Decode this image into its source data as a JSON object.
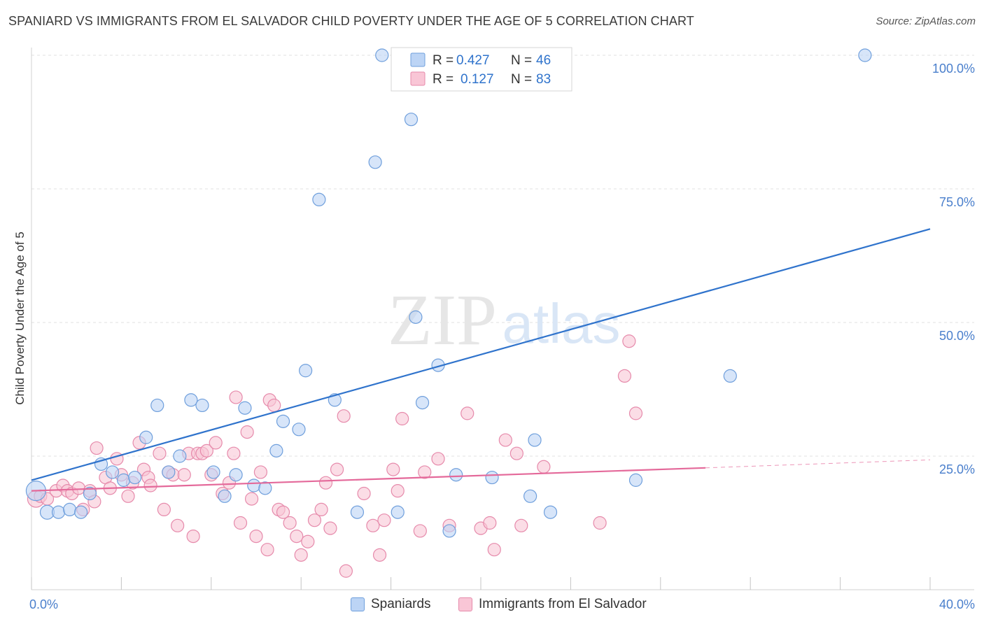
{
  "title": "SPANIARD VS IMMIGRANTS FROM EL SALVADOR CHILD POVERTY UNDER THE AGE OF 5 CORRELATION CHART",
  "source": "Source: ZipAtlas.com",
  "watermark": {
    "zip": "ZIP",
    "atlas": "atlas"
  },
  "colors": {
    "spaniards_fill": "#bcd4f5",
    "spaniards_stroke": "#6f9fdc",
    "spaniards_line": "#2f73cc",
    "salvador_fill": "#f9c6d6",
    "salvador_stroke": "#e68aab",
    "salvador_line": "#e4699a",
    "axis_text": "#4a7fcc",
    "grid": "#e2e2e2"
  },
  "legend": {
    "rows": [
      {
        "r_label": "R =",
        "r_value": "0.427",
        "n_label": "N =",
        "n_value": "46"
      },
      {
        "r_label": "R =",
        "r_value": "0.127",
        "n_label": "N =",
        "n_value": "83"
      }
    ]
  },
  "bottom_legend": {
    "spaniards": "Spaniards",
    "salvador": "Immigrants from El Salvador"
  },
  "chart_data": {
    "type": "scatter",
    "ylabel": "Child Poverty Under the Age of 5",
    "xlim": [
      0,
      40
    ],
    "ylim": [
      0,
      100
    ],
    "x_tick_labels": [
      {
        "value": 0,
        "label": "0.0%"
      },
      {
        "value": 40,
        "label": "40.0%"
      }
    ],
    "y_tick_labels": [
      {
        "value": 25,
        "label": "25.0%"
      },
      {
        "value": 50,
        "label": "50.0%"
      },
      {
        "value": 75,
        "label": "75.0%"
      },
      {
        "value": 100,
        "label": "100.0%"
      }
    ],
    "x_minor_ticks": [
      0,
      4,
      8,
      12,
      16,
      20,
      24,
      28,
      32,
      36,
      40
    ],
    "grid": true,
    "series": [
      {
        "name": "Spaniards",
        "trend": {
          "x0": 0,
          "y0": 20.5,
          "x1": 40,
          "y1": 67.5,
          "dashed_after": null
        },
        "points": [
          [
            0.2,
            18.5,
            14
          ],
          [
            0.7,
            14.5,
            10
          ],
          [
            1.2,
            14.5,
            9
          ],
          [
            1.7,
            15,
            9
          ],
          [
            2.2,
            14.5,
            9
          ],
          [
            2.6,
            18,
            9
          ],
          [
            3.1,
            23.5,
            9
          ],
          [
            3.6,
            22,
            9
          ],
          [
            4.1,
            20.5,
            9
          ],
          [
            4.6,
            21,
            9
          ],
          [
            5.1,
            28.5,
            9
          ],
          [
            5.6,
            34.5,
            9
          ],
          [
            6.1,
            22,
            9
          ],
          [
            6.6,
            25,
            9
          ],
          [
            7.1,
            35.5,
            9
          ],
          [
            7.6,
            34.5,
            9
          ],
          [
            8.1,
            22,
            9
          ],
          [
            8.6,
            17.5,
            9
          ],
          [
            9.1,
            21.5,
            9
          ],
          [
            9.5,
            34,
            9
          ],
          [
            9.9,
            19.5,
            9
          ],
          [
            10.4,
            19,
            9
          ],
          [
            10.9,
            26,
            9
          ],
          [
            11.2,
            31.5,
            9
          ],
          [
            11.9,
            30,
            9
          ],
          [
            12.2,
            41,
            9
          ],
          [
            12.8,
            73,
            9
          ],
          [
            13.5,
            35.5,
            9
          ],
          [
            14.5,
            14.5,
            9
          ],
          [
            15.3,
            80,
            9
          ],
          [
            15.6,
            100,
            9
          ],
          [
            16.3,
            14.5,
            9
          ],
          [
            16.9,
            88,
            9
          ],
          [
            17.1,
            51,
            9
          ],
          [
            17.4,
            35,
            9
          ],
          [
            18.1,
            42,
            9
          ],
          [
            18.6,
            11,
            9
          ],
          [
            18.9,
            21.5,
            9
          ],
          [
            20.5,
            21,
            9
          ],
          [
            21.1,
            100,
            9
          ],
          [
            22.2,
            17.5,
            9
          ],
          [
            22.4,
            28,
            9
          ],
          [
            23.1,
            14.5,
            9
          ],
          [
            26.9,
            20.5,
            9
          ],
          [
            31.1,
            40,
            9
          ],
          [
            37.1,
            100,
            9
          ]
        ]
      },
      {
        "name": "Immigrants from El Salvador",
        "trend": {
          "x0": 0,
          "y0": 18.5,
          "x1": 30,
          "y1": 22.8,
          "dashed_after": [
            30,
            40,
            24.3
          ]
        },
        "points": [
          [
            0.2,
            17,
            12
          ],
          [
            0.4,
            17.5,
            9
          ],
          [
            0.7,
            17,
            9
          ],
          [
            1.1,
            18.5,
            9
          ],
          [
            1.4,
            19.5,
            9
          ],
          [
            1.6,
            18.5,
            9
          ],
          [
            1.8,
            18,
            9
          ],
          [
            2.1,
            19,
            9
          ],
          [
            2.3,
            15,
            9
          ],
          [
            2.6,
            18.5,
            9
          ],
          [
            2.8,
            16.5,
            9
          ],
          [
            2.9,
            26.5,
            9
          ],
          [
            3.3,
            21,
            9
          ],
          [
            3.5,
            19,
            9
          ],
          [
            3.8,
            24.5,
            9
          ],
          [
            4.0,
            21.5,
            9
          ],
          [
            4.3,
            17.5,
            9
          ],
          [
            4.5,
            20,
            9
          ],
          [
            4.8,
            27.5,
            9
          ],
          [
            5.0,
            22.5,
            9
          ],
          [
            5.2,
            21,
            9
          ],
          [
            5.3,
            19.5,
            9
          ],
          [
            5.7,
            25.5,
            9
          ],
          [
            5.9,
            15,
            9
          ],
          [
            6.1,
            22,
            9
          ],
          [
            6.3,
            21.5,
            9
          ],
          [
            6.5,
            12,
            9
          ],
          [
            6.8,
            21.5,
            9
          ],
          [
            7.0,
            25.5,
            9
          ],
          [
            7.2,
            10,
            9
          ],
          [
            7.4,
            25.5,
            9
          ],
          [
            7.6,
            25.5,
            9
          ],
          [
            7.8,
            26,
            9
          ],
          [
            8.0,
            21.5,
            9
          ],
          [
            8.2,
            27.5,
            9
          ],
          [
            8.5,
            18,
            9
          ],
          [
            8.8,
            20,
            9
          ],
          [
            9.0,
            25.5,
            9
          ],
          [
            9.1,
            36,
            9
          ],
          [
            9.3,
            12.5,
            9
          ],
          [
            9.6,
            29.5,
            9
          ],
          [
            9.8,
            17,
            9
          ],
          [
            10.0,
            10,
            9
          ],
          [
            10.2,
            22,
            9
          ],
          [
            10.5,
            7.5,
            9
          ],
          [
            10.6,
            35.5,
            9
          ],
          [
            10.8,
            34.5,
            9
          ],
          [
            11.0,
            15,
            9
          ],
          [
            11.2,
            14.5,
            9
          ],
          [
            11.5,
            12.5,
            9
          ],
          [
            11.8,
            10,
            9
          ],
          [
            12.0,
            6.5,
            9
          ],
          [
            12.3,
            9,
            9
          ],
          [
            12.6,
            13,
            9
          ],
          [
            12.9,
            15,
            9
          ],
          [
            13.1,
            20,
            9
          ],
          [
            13.3,
            11.5,
            9
          ],
          [
            13.6,
            22.5,
            9
          ],
          [
            13.9,
            32.5,
            9
          ],
          [
            14.0,
            3.5,
            9
          ],
          [
            14.8,
            18,
            9
          ],
          [
            15.2,
            12,
            9
          ],
          [
            15.5,
            6.5,
            9
          ],
          [
            15.7,
            13,
            9
          ],
          [
            16.1,
            22.5,
            9
          ],
          [
            16.3,
            18.5,
            9
          ],
          [
            16.5,
            32,
            9
          ],
          [
            17.3,
            11,
            9
          ],
          [
            17.5,
            22,
            9
          ],
          [
            18.1,
            24.5,
            9
          ],
          [
            18.6,
            12,
            9
          ],
          [
            19.4,
            33,
            9
          ],
          [
            20.0,
            11.5,
            9
          ],
          [
            20.4,
            12.5,
            9
          ],
          [
            20.6,
            7.5,
            9
          ],
          [
            21.1,
            28,
            9
          ],
          [
            21.6,
            25.5,
            9
          ],
          [
            21.8,
            12,
            9
          ],
          [
            22.8,
            23,
            9
          ],
          [
            25.3,
            12.5,
            9
          ],
          [
            26.4,
            40,
            9
          ],
          [
            26.6,
            46.5,
            9
          ],
          [
            26.9,
            33,
            9
          ]
        ]
      }
    ]
  }
}
